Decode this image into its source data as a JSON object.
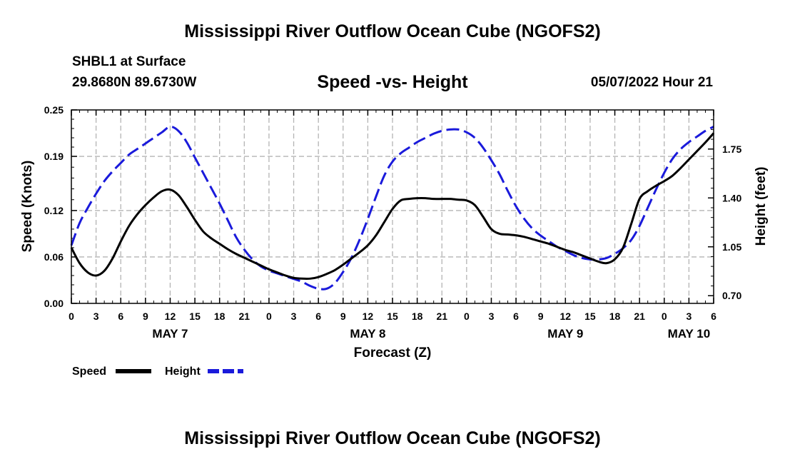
{
  "header": {
    "title": "Mississippi River Outflow Ocean Cube (NGOFS2)",
    "station": "SHBL1 at Surface",
    "coords": "29.8680N  89.6730W",
    "subtitle": "Speed -vs- Height",
    "datetime": "05/07/2022 Hour 21"
  },
  "footer": {
    "title": "Mississippi River Outflow Ocean Cube (NGOFS2)"
  },
  "chart_data": {
    "type": "line",
    "title": "Speed -vs- Height",
    "xlabel": "Forecast (Z)",
    "ylabel": "Speed (Knots)",
    "y2label": "Height (feet)",
    "xlim": [
      0,
      78
    ],
    "ylim": [
      0,
      0.25
    ],
    "y2lim": [
      0.645,
      2.03
    ],
    "x_unit": "hours from May 7 00Z",
    "x_ticks": [
      0,
      3,
      6,
      9,
      12,
      15,
      18,
      21,
      24,
      27,
      30,
      33,
      36,
      39,
      42,
      45,
      48,
      51,
      54,
      57,
      60,
      63,
      66,
      69,
      72,
      75,
      78
    ],
    "x_tick_labels": [
      "0",
      "3",
      "6",
      "9",
      "12",
      "15",
      "18",
      "21",
      "0",
      "3",
      "6",
      "9",
      "12",
      "15",
      "18",
      "21",
      "0",
      "3",
      "6",
      "9",
      "12",
      "15",
      "18",
      "21",
      "0",
      "3",
      "6"
    ],
    "y_ticks": [
      0.0,
      0.06,
      0.12,
      0.19,
      0.25
    ],
    "y_tick_labels": [
      "0.00",
      "0.06",
      "0.12",
      "0.19",
      "0.25"
    ],
    "y2_ticks": [
      0.7,
      1.05,
      1.4,
      1.75
    ],
    "y2_tick_labels": [
      "0.70",
      "1.05",
      "1.40",
      "1.75"
    ],
    "date_labels": [
      {
        "x": 12,
        "label": "MAY 7"
      },
      {
        "x": 36,
        "label": "MAY 8"
      },
      {
        "x": 60,
        "label": "MAY 9"
      },
      {
        "x": 75,
        "label": "MAY 10"
      }
    ],
    "grid": true,
    "legend": "bottom-left",
    "series": [
      {
        "name": "Speed",
        "axis": "left",
        "color": "#000000",
        "dash": "solid",
        "x": [
          0,
          1,
          2,
          3,
          4,
          5,
          6,
          7,
          8,
          9,
          10,
          11,
          12,
          13,
          14,
          15,
          16,
          17,
          18,
          19,
          20,
          21,
          22,
          23,
          24,
          25,
          26,
          27,
          28,
          29,
          30,
          31,
          32,
          33,
          34,
          35,
          36,
          37,
          38,
          39,
          40,
          41,
          42,
          43,
          44,
          45,
          46,
          47,
          48,
          49,
          50,
          51,
          52,
          53,
          54,
          55,
          56,
          57,
          58,
          59,
          60,
          61,
          62,
          63,
          64,
          65,
          66,
          67,
          68,
          69,
          70,
          71,
          72,
          73,
          74,
          75,
          76,
          77,
          78
        ],
        "values": [
          0.072,
          0.052,
          0.04,
          0.036,
          0.042,
          0.058,
          0.08,
          0.1,
          0.115,
          0.127,
          0.137,
          0.145,
          0.147,
          0.14,
          0.125,
          0.108,
          0.093,
          0.084,
          0.077,
          0.07,
          0.064,
          0.059,
          0.054,
          0.049,
          0.044,
          0.04,
          0.036,
          0.033,
          0.032,
          0.032,
          0.034,
          0.038,
          0.043,
          0.05,
          0.058,
          0.066,
          0.075,
          0.088,
          0.105,
          0.122,
          0.133,
          0.135,
          0.136,
          0.136,
          0.135,
          0.135,
          0.135,
          0.134,
          0.133,
          0.127,
          0.112,
          0.096,
          0.09,
          0.089,
          0.088,
          0.086,
          0.083,
          0.08,
          0.077,
          0.073,
          0.069,
          0.066,
          0.062,
          0.058,
          0.054,
          0.052,
          0.057,
          0.072,
          0.103,
          0.135,
          0.145,
          0.152,
          0.158,
          0.165,
          0.175,
          0.186,
          0.197,
          0.208,
          0.22
        ]
      },
      {
        "name": "Height",
        "axis": "right",
        "color": "#1a1adb",
        "dash": "dashed",
        "x": [
          0,
          1,
          2,
          3,
          4,
          5,
          6,
          7,
          8,
          9,
          10,
          11,
          12,
          13,
          14,
          15,
          16,
          17,
          18,
          19,
          20,
          21,
          22,
          23,
          24,
          25,
          26,
          27,
          28,
          29,
          30,
          31,
          32,
          33,
          34,
          35,
          36,
          37,
          38,
          39,
          40,
          41,
          42,
          43,
          44,
          45,
          46,
          47,
          48,
          49,
          50,
          51,
          52,
          53,
          54,
          55,
          56,
          57,
          58,
          59,
          60,
          61,
          62,
          63,
          64,
          65,
          66,
          67,
          68,
          69,
          70,
          71,
          72,
          73,
          74,
          75,
          76,
          77,
          78
        ],
        "values": [
          1.06,
          1.22,
          1.33,
          1.43,
          1.52,
          1.59,
          1.65,
          1.71,
          1.75,
          1.79,
          1.83,
          1.87,
          1.91,
          1.88,
          1.8,
          1.69,
          1.58,
          1.47,
          1.36,
          1.24,
          1.12,
          1.03,
          0.96,
          0.91,
          0.88,
          0.86,
          0.84,
          0.82,
          0.8,
          0.77,
          0.75,
          0.75,
          0.79,
          0.87,
          0.97,
          1.1,
          1.25,
          1.41,
          1.56,
          1.66,
          1.72,
          1.76,
          1.8,
          1.83,
          1.86,
          1.88,
          1.89,
          1.89,
          1.87,
          1.83,
          1.76,
          1.67,
          1.57,
          1.45,
          1.34,
          1.25,
          1.18,
          1.13,
          1.09,
          1.05,
          1.02,
          0.99,
          0.97,
          0.96,
          0.96,
          0.97,
          1.0,
          1.04,
          1.1,
          1.2,
          1.33,
          1.46,
          1.58,
          1.68,
          1.75,
          1.8,
          1.84,
          1.88,
          1.91
        ]
      }
    ]
  }
}
